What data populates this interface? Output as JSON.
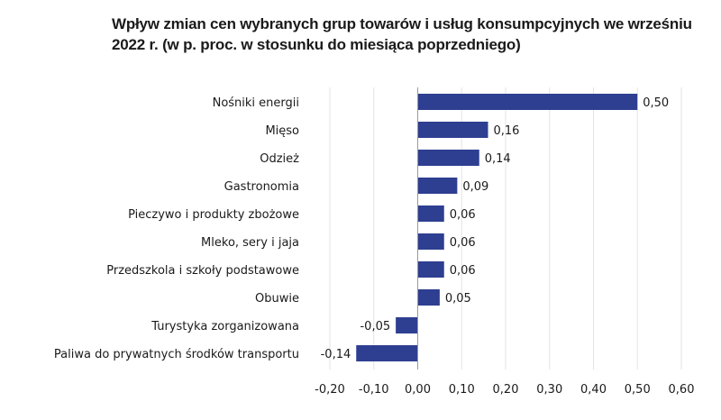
{
  "chart_data": {
    "type": "bar",
    "orientation": "horizontal",
    "title": "Wpływ zmian cen wybranych grup towarów i usług konsumpcyjnych we wrześniu 2022 r. (w p. proc. w stosunku do miesiąca poprzedniego)",
    "categories": [
      "Nośniki energii",
      "Mięso",
      "Odzież",
      "Gastronomia",
      "Pieczywo i produkty zbożowe",
      "Mleko, sery i jaja",
      "Przedszkola i szkoły podstawowe",
      "Obuwie",
      "Turystyka zorganizowana",
      "Paliwa do prywatnych środków transportu"
    ],
    "values": [
      0.5,
      0.16,
      0.14,
      0.09,
      0.06,
      0.06,
      0.06,
      0.05,
      -0.05,
      -0.14
    ],
    "value_labels": [
      "0,50",
      "0,16",
      "0,14",
      "0,09",
      "0,06",
      "0,06",
      "0,06",
      "0,05",
      "-0,05",
      "-0,14"
    ],
    "xlim": [
      -0.2,
      0.6
    ],
    "xticks": [
      -0.2,
      -0.1,
      0.0,
      0.1,
      0.2,
      0.3,
      0.4,
      0.5,
      0.6
    ],
    "xtick_labels": [
      "-0,20",
      "-0,10",
      "0,00",
      "0,10",
      "0,20",
      "0,30",
      "0,40",
      "0,50",
      "0,60"
    ],
    "bar_color": "#2e3f91",
    "gridlines": true,
    "legend": "none"
  }
}
